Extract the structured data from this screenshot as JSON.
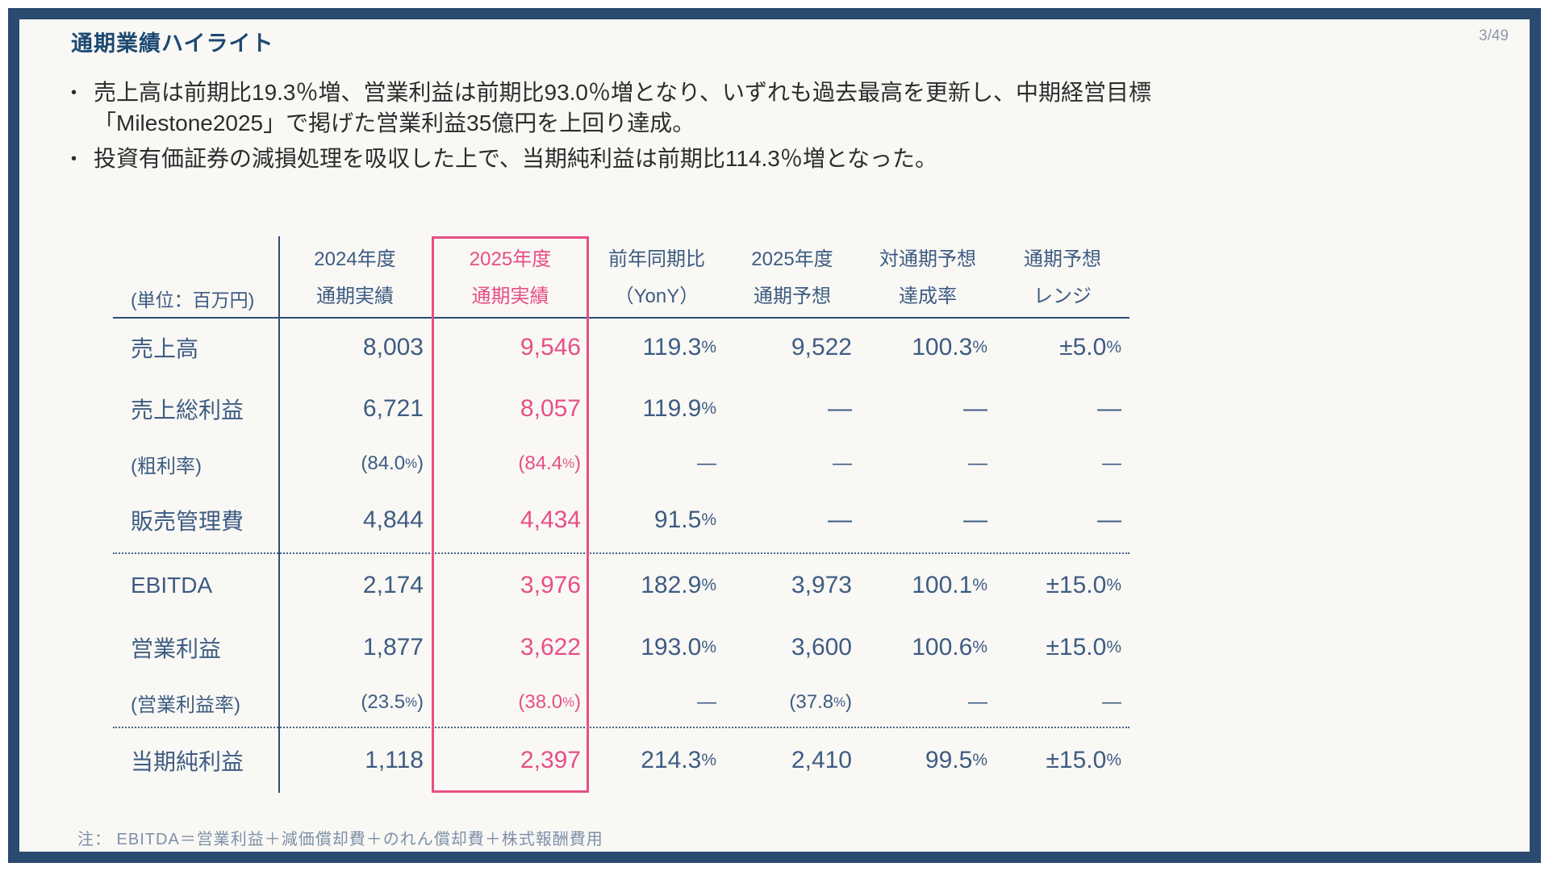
{
  "slide": {
    "title": "通期業績ハイライト",
    "page_number": "3/49",
    "bullets": [
      {
        "lines": [
          "売上高は前期比19.3％増、営業利益は前期比93.0％増となり、いずれも過去最高を更新し、中期経営目標",
          "「Milestone2025」で掲げた営業利益35億円を上回り達成。"
        ]
      },
      {
        "lines": [
          "投資有価証券の減損処理を吸収した上で、当期純利益は前期比114.3％増となった。"
        ]
      }
    ],
    "note": "注： EBITDA＝営業利益＋減価償却費＋のれん償却費＋株式報酬費用"
  },
  "table": {
    "unit_label": "(単位：百万円)",
    "columns": [
      {
        "line1": "2024年度",
        "line2": "通期実績"
      },
      {
        "line1": "2025年度",
        "line2": "通期実績",
        "highlight": true
      },
      {
        "line1": "前年同期比",
        "line2": "（YonY）"
      },
      {
        "line1": "2025年度",
        "line2": "通期予想"
      },
      {
        "line1": "対通期予想",
        "line2": "達成率"
      },
      {
        "line1": "通期予想",
        "line2": "レンジ"
      }
    ],
    "rows": [
      {
        "label": "売上高",
        "cells": [
          "8,003",
          "9,546",
          "119.3%",
          "9,522",
          "100.3%",
          "±5.0%"
        ]
      },
      {
        "label": "売上総利益",
        "cells": [
          "6,721",
          "8,057",
          "119.9%",
          "—",
          "—",
          "—"
        ]
      },
      {
        "label": "(粗利率)",
        "sub": true,
        "cells": [
          "(84.0%)",
          "(84.4%)",
          "—",
          "—",
          "—",
          "—"
        ]
      },
      {
        "label": "販売管理費",
        "cells": [
          "4,844",
          "4,434",
          "91.5%",
          "—",
          "—",
          "—"
        ]
      },
      {
        "label": "EBITDA",
        "cells": [
          "2,174",
          "3,976",
          "182.9%",
          "3,973",
          "100.1%",
          "±15.0%"
        ]
      },
      {
        "label": "営業利益",
        "cells": [
          "1,877",
          "3,622",
          "193.0%",
          "3,600",
          "100.6%",
          "±15.0%"
        ]
      },
      {
        "label": "(営業利益率)",
        "sub": true,
        "cells": [
          "(23.5%)",
          "(38.0%)",
          "—",
          "(37.8%)",
          "—",
          "—"
        ]
      },
      {
        "label": "当期純利益",
        "cells": [
          "1,118",
          "2,397",
          "214.3%",
          "2,410",
          "99.5%",
          "±15.0%"
        ]
      }
    ]
  },
  "colors": {
    "frame_navy": "#2b4a70",
    "table_navy": "#3e5c82",
    "highlight_pink": "#e74f85",
    "note_gray_blue": "#7e90a8"
  }
}
